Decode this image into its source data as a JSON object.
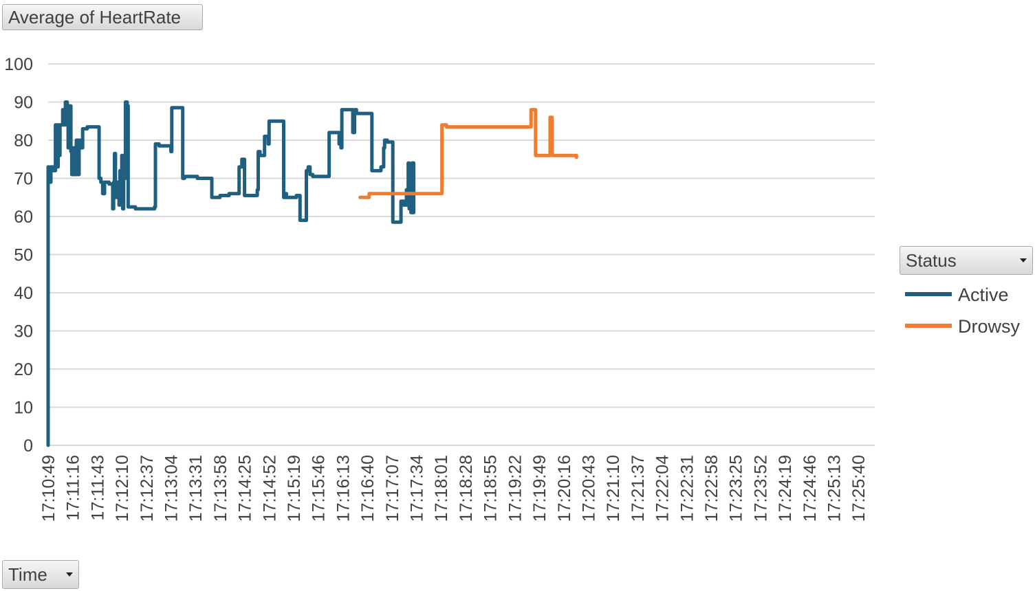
{
  "pivot": {
    "value_field_label": "Average of HeartRate",
    "legend_field_label": "Status",
    "axis_field_label": "Time"
  },
  "icons": {
    "dropdown": "dropdown-caret-icon"
  },
  "colors": {
    "active": "#1f5f80",
    "drowsy": "#ee7d31",
    "grid": "#d9d9d9"
  },
  "chart_data": {
    "type": "line",
    "title": "",
    "xlabel": "",
    "ylabel": "",
    "ylim": [
      0,
      100
    ],
    "yticks": [
      0,
      10,
      20,
      30,
      40,
      50,
      60,
      70,
      80,
      90,
      100
    ],
    "grid": true,
    "legend": "right",
    "xlim": [
      "17:10:49",
      "17:25:58"
    ],
    "xticks": [
      "17:10:49",
      "17:11:16",
      "17:11:43",
      "17:12:10",
      "17:12:37",
      "17:13:04",
      "17:13:31",
      "17:13:58",
      "17:14:25",
      "17:14:52",
      "17:15:19",
      "17:15:46",
      "17:16:13",
      "17:16:40",
      "17:17:07",
      "17:17:34",
      "17:18:01",
      "17:18:28",
      "17:18:55",
      "17:19:22",
      "17:19:49",
      "17:20:16",
      "17:20:43",
      "17:21:10",
      "17:21:37",
      "17:22:04",
      "17:22:31",
      "17:22:58",
      "17:23:25",
      "17:23:52",
      "17:24:19",
      "17:24:46",
      "17:25:13",
      "17:25:40"
    ],
    "series": [
      {
        "name": "Active",
        "color": "#1f5f80",
        "points": [
          [
            "17:10:49",
            0
          ],
          [
            "17:10:49",
            73
          ],
          [
            "17:10:50",
            69
          ],
          [
            "17:10:52",
            73
          ],
          [
            "17:10:55",
            72
          ],
          [
            "17:10:57",
            84
          ],
          [
            "17:10:59",
            73
          ],
          [
            "17:11:00",
            84
          ],
          [
            "17:11:01",
            76
          ],
          [
            "17:11:02",
            84
          ],
          [
            "17:11:05",
            88
          ],
          [
            "17:11:06",
            84
          ],
          [
            "17:11:08",
            90
          ],
          [
            "17:11:10",
            88
          ],
          [
            "17:11:11",
            78
          ],
          [
            "17:11:12",
            89
          ],
          [
            "17:11:14",
            77
          ],
          [
            "17:11:15",
            71
          ],
          [
            "17:11:17",
            78
          ],
          [
            "17:11:18",
            71
          ],
          [
            "17:11:20",
            80
          ],
          [
            "17:11:22",
            71
          ],
          [
            "17:11:23",
            80
          ],
          [
            "17:11:25",
            78
          ],
          [
            "17:11:27",
            83
          ],
          [
            "17:11:32",
            83.5
          ],
          [
            "17:11:44",
            83.5
          ],
          [
            "17:11:45",
            70
          ],
          [
            "17:11:47",
            69
          ],
          [
            "17:11:49",
            66
          ],
          [
            "17:11:51",
            69
          ],
          [
            "17:11:56",
            68.5
          ],
          [
            "17:11:59",
            68.5
          ],
          [
            "17:12:00",
            62
          ],
          [
            "17:12:01",
            69
          ],
          [
            "17:12:02",
            76.5
          ],
          [
            "17:12:03",
            65
          ],
          [
            "17:12:05",
            69
          ],
          [
            "17:12:07",
            63
          ],
          [
            "17:12:08",
            72
          ],
          [
            "17:12:10",
            76
          ],
          [
            "17:12:11",
            62
          ],
          [
            "17:12:12",
            76
          ],
          [
            "17:12:13",
            70
          ],
          [
            "17:12:14",
            90
          ],
          [
            "17:12:16",
            89
          ],
          [
            "17:12:17",
            62.5
          ],
          [
            "17:12:25",
            62
          ],
          [
            "17:12:40",
            62
          ],
          [
            "17:12:46",
            62.5
          ],
          [
            "17:12:47",
            79
          ],
          [
            "17:12:51",
            78.5
          ],
          [
            "17:13:03",
            78.5
          ],
          [
            "17:13:04",
            77
          ],
          [
            "17:13:05",
            88.5
          ],
          [
            "17:13:16",
            88.5
          ],
          [
            "17:13:17",
            70
          ],
          [
            "17:13:19",
            70.5
          ],
          [
            "17:13:30",
            70.5
          ],
          [
            "17:13:33",
            70
          ],
          [
            "17:13:48",
            70
          ],
          [
            "17:13:49",
            65
          ],
          [
            "17:13:58",
            65.5
          ],
          [
            "17:14:08",
            66
          ],
          [
            "17:14:18",
            66
          ],
          [
            "17:14:19",
            73
          ],
          [
            "17:14:22",
            75
          ],
          [
            "17:14:24",
            75
          ],
          [
            "17:14:25",
            65.5
          ],
          [
            "17:14:38",
            65.5
          ],
          [
            "17:14:39",
            67
          ],
          [
            "17:14:40",
            77
          ],
          [
            "17:14:42",
            76
          ],
          [
            "17:14:46",
            76
          ],
          [
            "17:14:47",
            81
          ],
          [
            "17:14:51",
            79
          ],
          [
            "17:14:52",
            85
          ],
          [
            "17:14:58",
            85
          ],
          [
            "17:15:04",
            85
          ],
          [
            "17:15:07",
            85
          ],
          [
            "17:15:08",
            65
          ],
          [
            "17:15:10",
            66
          ],
          [
            "17:15:11",
            65
          ],
          [
            "17:15:22",
            65.5
          ],
          [
            "17:15:24",
            65.5
          ],
          [
            "17:15:26",
            59
          ],
          [
            "17:15:32",
            59
          ],
          [
            "17:15:33",
            72
          ],
          [
            "17:15:35",
            73
          ],
          [
            "17:15:37",
            71
          ],
          [
            "17:15:40",
            70.5
          ],
          [
            "17:15:46",
            70.5
          ],
          [
            "17:15:47",
            70.5
          ],
          [
            "17:15:57",
            70.5
          ],
          [
            "17:15:58",
            82
          ],
          [
            "17:16:06",
            82
          ],
          [
            "17:16:08",
            82
          ],
          [
            "17:16:09",
            79
          ],
          [
            "17:16:11",
            78
          ],
          [
            "17:16:12",
            88
          ],
          [
            "17:16:22",
            88
          ],
          [
            "17:16:24",
            82
          ],
          [
            "17:16:26",
            88
          ],
          [
            "17:16:28",
            87
          ],
          [
            "17:16:45",
            72
          ],
          [
            "17:16:55",
            73
          ],
          [
            "17:16:58",
            78
          ],
          [
            "17:16:59",
            80
          ],
          [
            "17:17:02",
            79.5
          ],
          [
            "17:17:07",
            79.5
          ],
          [
            "17:17:08",
            58.5
          ],
          [
            "17:17:16",
            58.5
          ],
          [
            "17:17:17",
            64
          ],
          [
            "17:17:20",
            63
          ],
          [
            "17:17:22",
            63
          ],
          [
            "17:17:23",
            67
          ],
          [
            "17:17:24",
            63
          ],
          [
            "17:17:25",
            74
          ],
          [
            "17:17:26",
            62
          ],
          [
            "17:17:27",
            73
          ],
          [
            "17:17:28",
            61
          ],
          [
            "17:17:29",
            74
          ],
          [
            "17:17:30",
            61
          ],
          [
            "17:17:31",
            74
          ]
        ]
      },
      {
        "name": "Drowsy",
        "color": "#ee7d31",
        "points": [
          [
            "17:16:32",
            65
          ],
          [
            "17:16:42",
            66
          ],
          [
            "17:16:50",
            66
          ],
          [
            "17:17:50",
            66
          ],
          [
            "17:18:00",
            66
          ],
          [
            "17:18:02",
            84
          ],
          [
            "17:18:07",
            83.5
          ],
          [
            "17:19:40",
            88
          ],
          [
            "17:19:45",
            76
          ],
          [
            "17:20:00",
            76
          ],
          [
            "17:20:01",
            86
          ],
          [
            "17:20:03",
            76
          ],
          [
            "17:20:16",
            76
          ],
          [
            "17:20:30",
            75.5
          ]
        ]
      }
    ]
  }
}
